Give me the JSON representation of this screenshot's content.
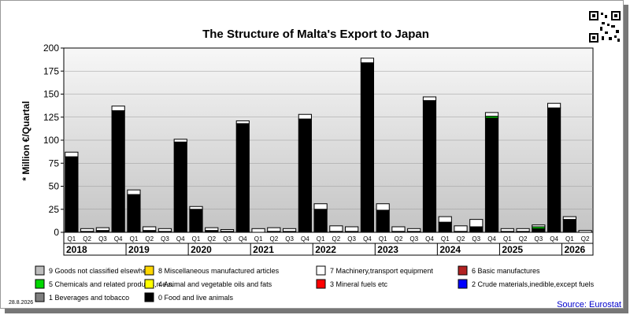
{
  "chart_data": {
    "type": "bar",
    "stacked": true,
    "title": "The Structure of Malta's Export to Japan",
    "ylabel": "* Million €/Quartal",
    "xlabel": "",
    "ylim": [
      0,
      200
    ],
    "yticks": [
      0,
      25,
      50,
      75,
      100,
      125,
      150,
      175,
      200
    ],
    "grid": true,
    "legend_position": "bottom",
    "quarters": [
      "Q1",
      "Q2",
      "Q3",
      "Q4",
      "Q1",
      "Q2",
      "Q3",
      "Q4",
      "Q1",
      "Q2",
      "Q3",
      "Q4",
      "Q1",
      "Q2",
      "Q3",
      "Q4",
      "Q1",
      "Q2",
      "Q3",
      "Q4",
      "Q1",
      "Q2",
      "Q3",
      "Q4",
      "Q1",
      "Q2",
      "Q3",
      "Q4",
      "Q1",
      "Q2",
      "Q3",
      "Q4",
      "Q1",
      "Q2"
    ],
    "years": [
      {
        "label": "2018",
        "quarters": 4
      },
      {
        "label": "2019",
        "quarters": 4
      },
      {
        "label": "2020",
        "quarters": 4
      },
      {
        "label": "2021",
        "quarters": 4
      },
      {
        "label": "2022",
        "quarters": 4
      },
      {
        "label": "2023",
        "quarters": 4
      },
      {
        "label": "2024",
        "quarters": 4
      },
      {
        "label": "2025",
        "quarters": 4
      },
      {
        "label": "2026",
        "quarters": 2
      }
    ],
    "series": [
      {
        "name": "0 Food and live animals",
        "color": "#000000",
        "values": [
          82,
          1,
          2,
          132,
          41,
          2,
          1,
          98,
          25,
          2,
          1,
          118,
          0,
          1,
          1,
          123,
          25,
          1,
          1,
          184,
          24,
          1,
          1,
          143,
          11,
          1,
          6,
          124,
          1,
          1,
          4,
          135,
          14,
          0
        ]
      },
      {
        "name": "5 Chemicals and related products,n.e.s.",
        "color": "#00d800",
        "values": [
          0,
          0,
          0,
          0,
          0,
          0,
          0,
          0,
          0,
          0,
          0,
          0,
          0,
          0,
          0,
          0,
          0,
          0,
          0,
          0,
          0,
          0,
          0,
          0,
          0,
          0,
          0,
          2,
          0,
          0,
          2,
          0,
          0,
          0
        ]
      },
      {
        "name": "7 Machinery,transport equipment",
        "color": "#ffffff",
        "values": [
          5,
          3,
          3,
          5,
          5,
          4,
          3,
          3,
          3,
          3,
          2,
          3,
          4,
          4,
          3,
          5,
          6,
          6,
          5,
          5,
          7,
          5,
          3,
          4,
          6,
          6,
          8,
          4,
          3,
          3,
          2,
          5,
          3,
          2
        ]
      },
      {
        "name": "9 Goods not classified elsewhere",
        "color": "#bdbdbd",
        "values": []
      },
      {
        "name": "8 Miscellaneous manufactured articles",
        "color": "#ffd700",
        "values": []
      },
      {
        "name": "6 Basic manufactures",
        "color": "#b22222",
        "values": []
      },
      {
        "name": "4 Animal and vegetable oils and fats",
        "color": "#ffff00",
        "values": []
      },
      {
        "name": "3 Mineral fuels etc",
        "color": "#ff0000",
        "values": []
      },
      {
        "name": "2 Crude materials,inedible,except fuels",
        "color": "#0000ff",
        "values": []
      },
      {
        "name": "1 Beverages and tobacco",
        "color": "#7f7f7f",
        "values": []
      }
    ],
    "legend": [
      {
        "label": "9 Goods not classified elsewhere",
        "color": "#bdbdbd"
      },
      {
        "label": "8 Miscellaneous manufactured articles",
        "color": "#ffd700"
      },
      {
        "label": "7 Machinery,transport equipment",
        "color": "#ffffff"
      },
      {
        "label": "6 Basic manufactures",
        "color": "#b22222"
      },
      {
        "label": "5 Chemicals and related products,n.e.s.",
        "color": "#00d800"
      },
      {
        "label": "4 Animal and vegetable oils and fats",
        "color": "#ffff00"
      },
      {
        "label": "3 Mineral fuels etc",
        "color": "#ff0000"
      },
      {
        "label": "2 Crude materials,inedible,except fuels",
        "color": "#0000ff"
      },
      {
        "label": "1 Beverages and tobacco",
        "color": "#7f7f7f"
      },
      {
        "label": "0 Food and live animals",
        "color": "#000000"
      }
    ]
  },
  "footer": {
    "date": "28.8.2026",
    "source": "Source: Eurostat"
  },
  "colors": {
    "plot_top": "#f7f7f7",
    "plot_bottom": "#c4c4c4",
    "source_text": "#0000cc"
  }
}
